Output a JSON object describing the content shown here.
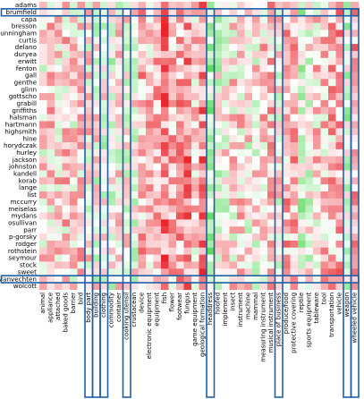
{
  "chart_data": {
    "type": "heatmap",
    "title": "",
    "xlabel": "",
    "ylabel": "",
    "colors": {
      "positive": "#e8242b",
      "negative": "#2fd135",
      "neutral": "#ffffff",
      "highlight_box": "#1f5fa8"
    },
    "rows": [
      "adams",
      "brumfield",
      "capa",
      "bresson",
      "cunningham",
      "curtis",
      "delano",
      "duryea",
      "erwitt",
      "fenton",
      "gall",
      "genthe",
      "glinn",
      "gottscho",
      "grabill",
      "griffiths",
      "halsman",
      "hartmann",
      "highsmith",
      "hine",
      "horydczak",
      "hurley",
      "jackson",
      "johnston",
      "kandell",
      "korab",
      "lange",
      "list",
      "mccurry",
      "meiselas",
      "mydans",
      "osullivan",
      "parr",
      "p-gorsky",
      "rodger",
      "rothstein",
      "seymour",
      "stock",
      "sweet",
      "vanvechten",
      "wolcott"
    ],
    "columns": [
      "animal",
      "appliance",
      "attached",
      "baked goods",
      "barrier",
      "bird",
      "body part",
      "building",
      "clothing",
      "commodity",
      "container",
      "cooking utensil",
      "crustacean",
      "device",
      "electronic equipment",
      "equipment",
      "fish",
      "flower",
      "footwear",
      "fungus",
      "game equipment",
      "geological formation",
      "headdress",
      "hoofed",
      "implement",
      "insect",
      "instrument",
      "machine",
      "mammal",
      "measuring instrument",
      "musical instrument",
      "place of business",
      "produce/food",
      "protective covering",
      "reptile",
      "sports equipment",
      "tableware",
      "tool",
      "transportation",
      "vehicle",
      "weapon",
      "wheeled vehicle"
    ],
    "highlighted_rows": [
      "brumfield",
      "vanvechten"
    ],
    "highlighted_columns": [
      "body part",
      "building",
      "clothing",
      "cooking utensil",
      "headdress",
      "place of business",
      "weapon",
      "wheeled vehicle"
    ],
    "value_range": [
      -1,
      1
    ]
  }
}
